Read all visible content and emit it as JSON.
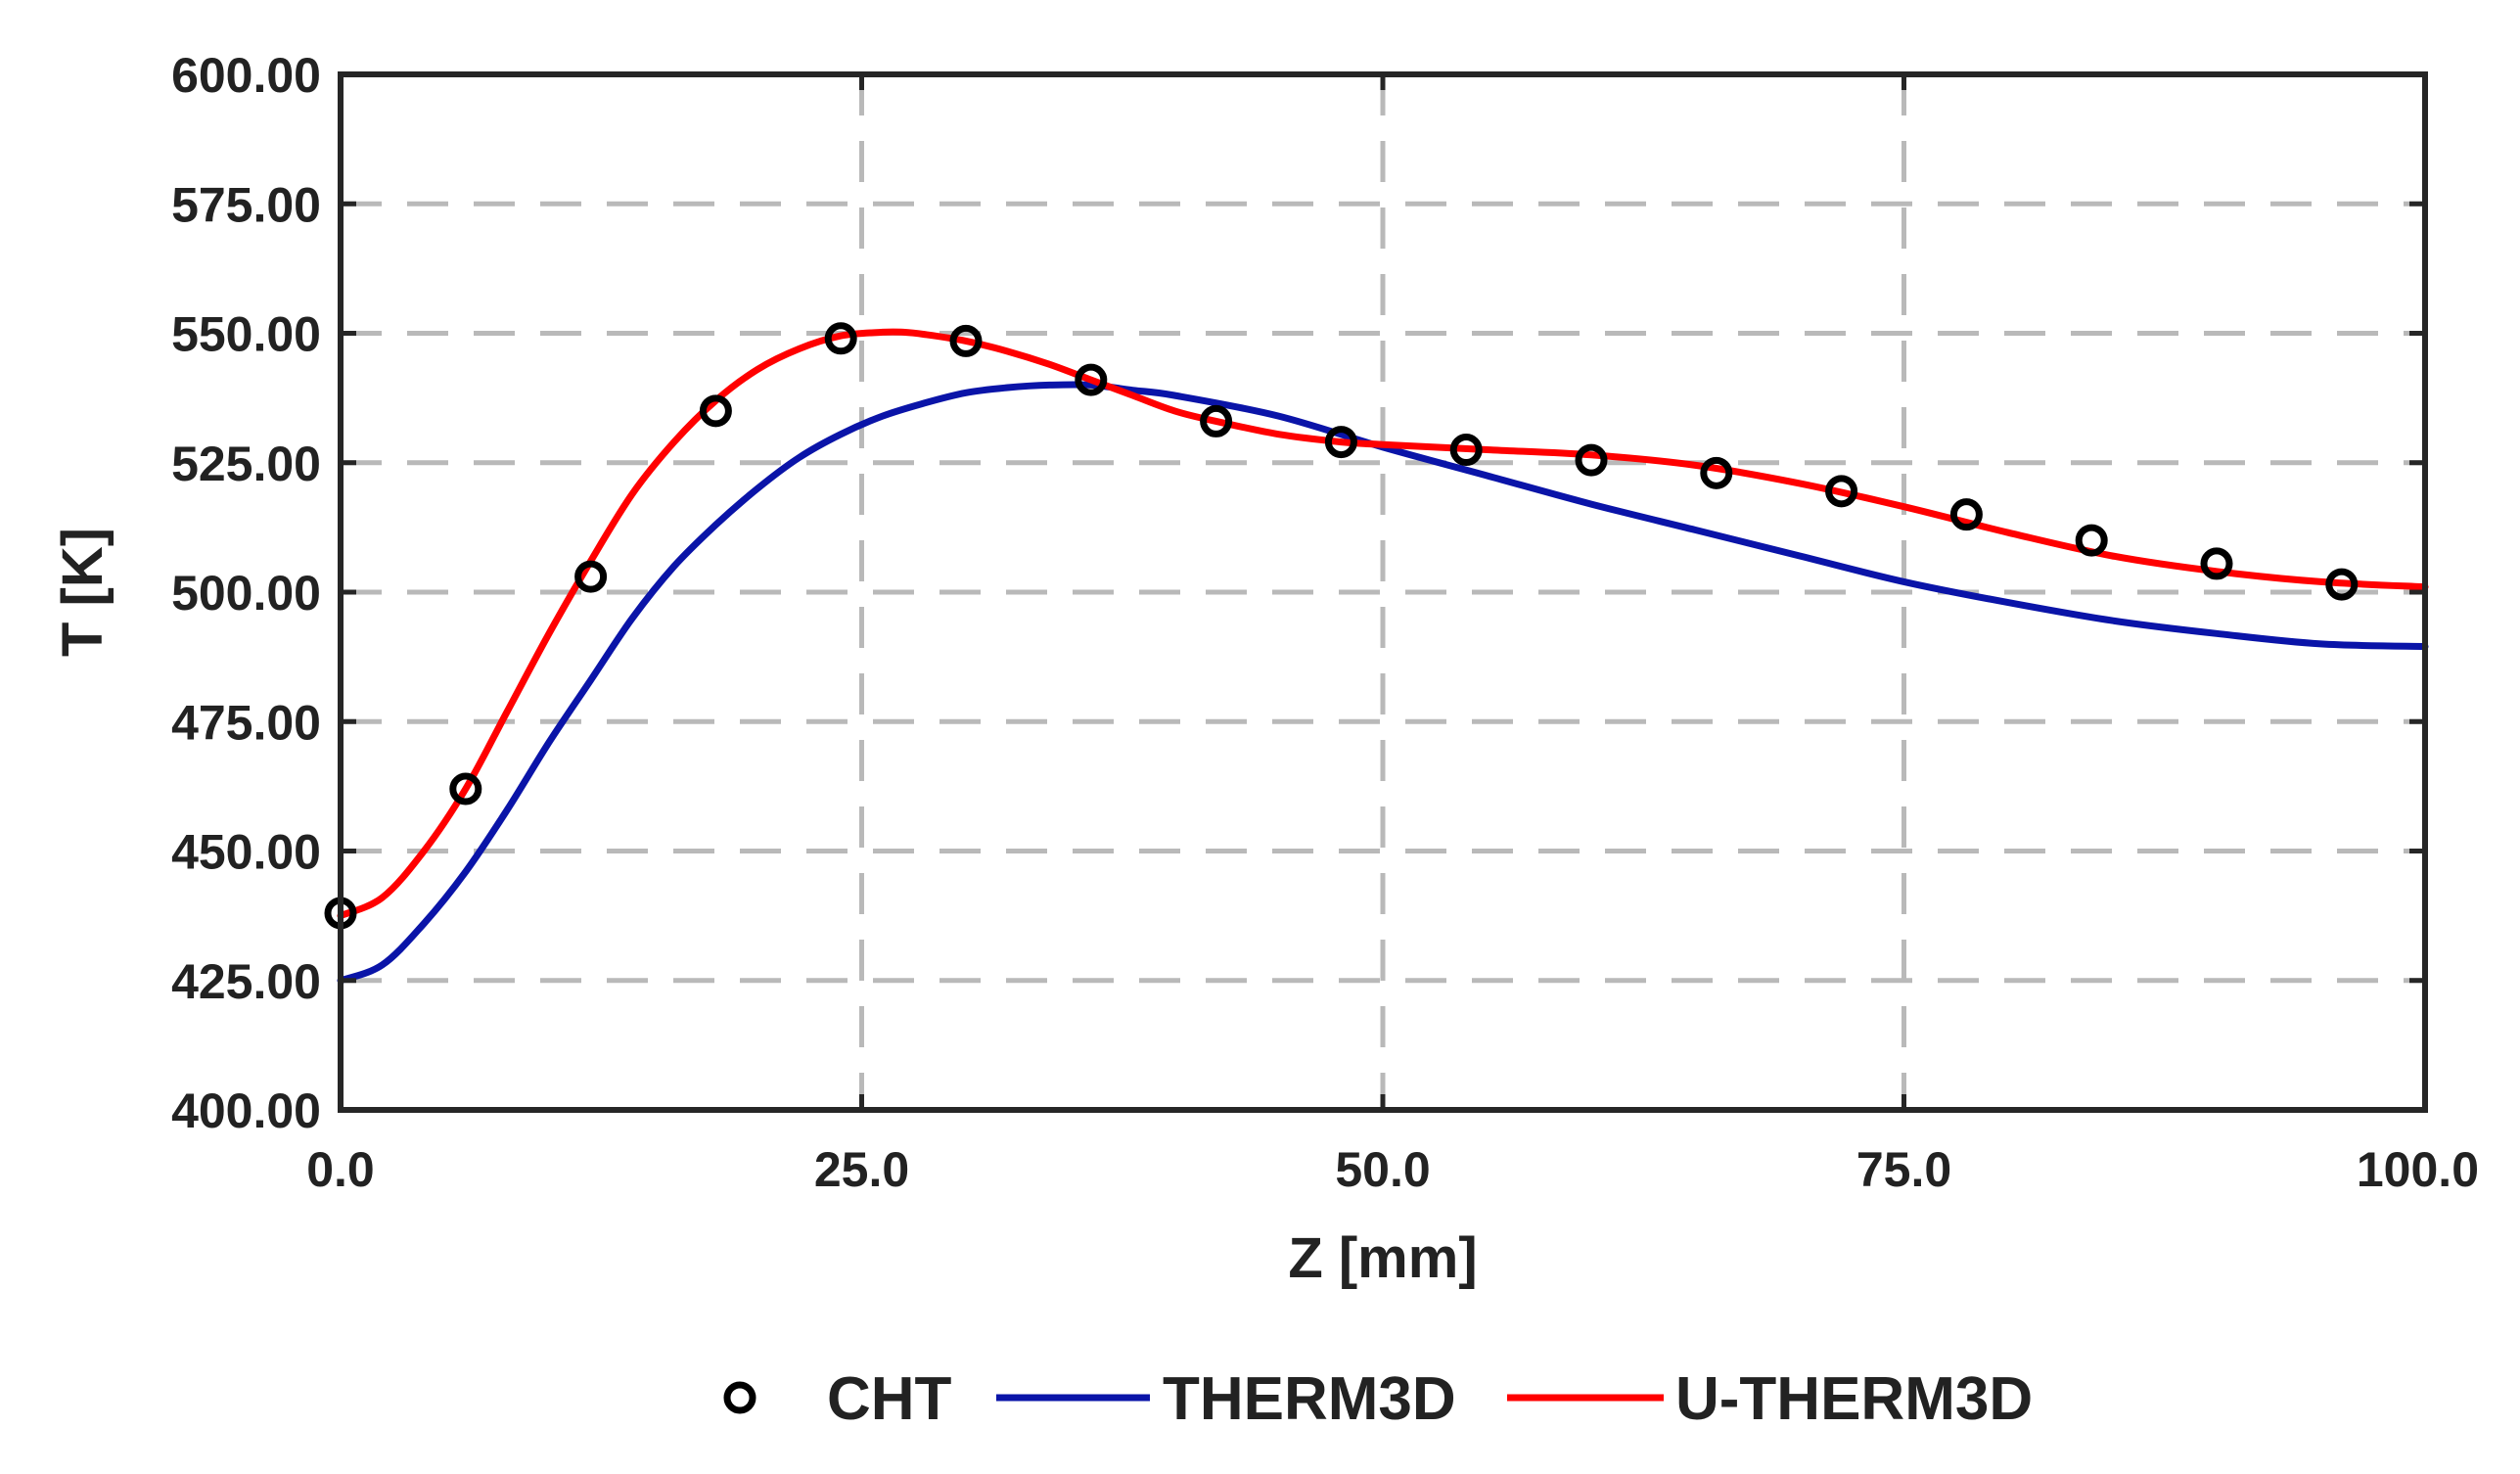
{
  "chart_data": {
    "type": "line",
    "title": "",
    "xlabel": "Z [mm]",
    "ylabel": "T [K]",
    "xlim": [
      0,
      100
    ],
    "ylim": [
      400,
      600
    ],
    "x_ticks": [
      0,
      25,
      50,
      75,
      100
    ],
    "x_tick_labels": [
      "0.0",
      "25.0",
      "50.0",
      "75.0",
      "100.0"
    ],
    "y_ticks": [
      400,
      425,
      450,
      475,
      500,
      525,
      550,
      575,
      600
    ],
    "y_tick_labels": [
      "400.00",
      "425.00",
      "450.00",
      "475.00",
      "500.00",
      "525.00",
      "550.00",
      "575.00",
      "600.00"
    ],
    "grid": true,
    "legend_position": "bottom-center",
    "series": [
      {
        "name": "CHT",
        "style": "markers",
        "color": "#000000",
        "x": [
          0,
          6,
          12,
          18,
          24,
          30,
          36,
          42,
          48,
          54,
          60,
          66,
          72,
          78,
          84,
          90,
          96
        ],
        "y": [
          438,
          462,
          503,
          535,
          549,
          548.5,
          541,
          533,
          529,
          527.5,
          525.5,
          523,
          519.5,
          515,
          510,
          505.5,
          501.5
        ]
      },
      {
        "name": "THERM3D",
        "style": "line",
        "color": "#0a14a8",
        "x": [
          0,
          2,
          4,
          6,
          8,
          10,
          12,
          14,
          16,
          18,
          20,
          22,
          24,
          26,
          28,
          30,
          32,
          34,
          36,
          38,
          40,
          45,
          50,
          55,
          60,
          65,
          70,
          75,
          80,
          85,
          90,
          95,
          100
        ],
        "y": [
          425,
          428,
          436,
          446,
          458,
          471,
          483,
          495,
          505,
          513,
          520,
          526,
          530.5,
          534,
          536.5,
          538.5,
          539.5,
          540,
          540,
          539,
          538,
          534,
          528,
          522.5,
          517,
          512,
          507,
          502,
          498,
          494.5,
          492,
          490,
          489.5
        ]
      },
      {
        "name": "U-THERM3D",
        "style": "line",
        "color": "#ff0000",
        "x": [
          0,
          2,
          4,
          6,
          8,
          10,
          12,
          14,
          16,
          18,
          20,
          22,
          24,
          26,
          27,
          28,
          30,
          32,
          34,
          36,
          38,
          40,
          42,
          45,
          48,
          50,
          55,
          60,
          65,
          70,
          75,
          80,
          85,
          90,
          95,
          100
        ],
        "y": [
          437.5,
          441,
          450,
          462,
          477,
          492,
          506,
          519,
          529,
          537,
          543,
          547,
          549.5,
          550.2,
          550.2,
          549.8,
          548.5,
          546.5,
          544,
          541,
          538,
          535,
          533,
          530.5,
          529,
          528.5,
          527.5,
          526.5,
          524.5,
          521,
          516.5,
          511.5,
          507,
          504,
          502,
          501
        ]
      }
    ]
  }
}
